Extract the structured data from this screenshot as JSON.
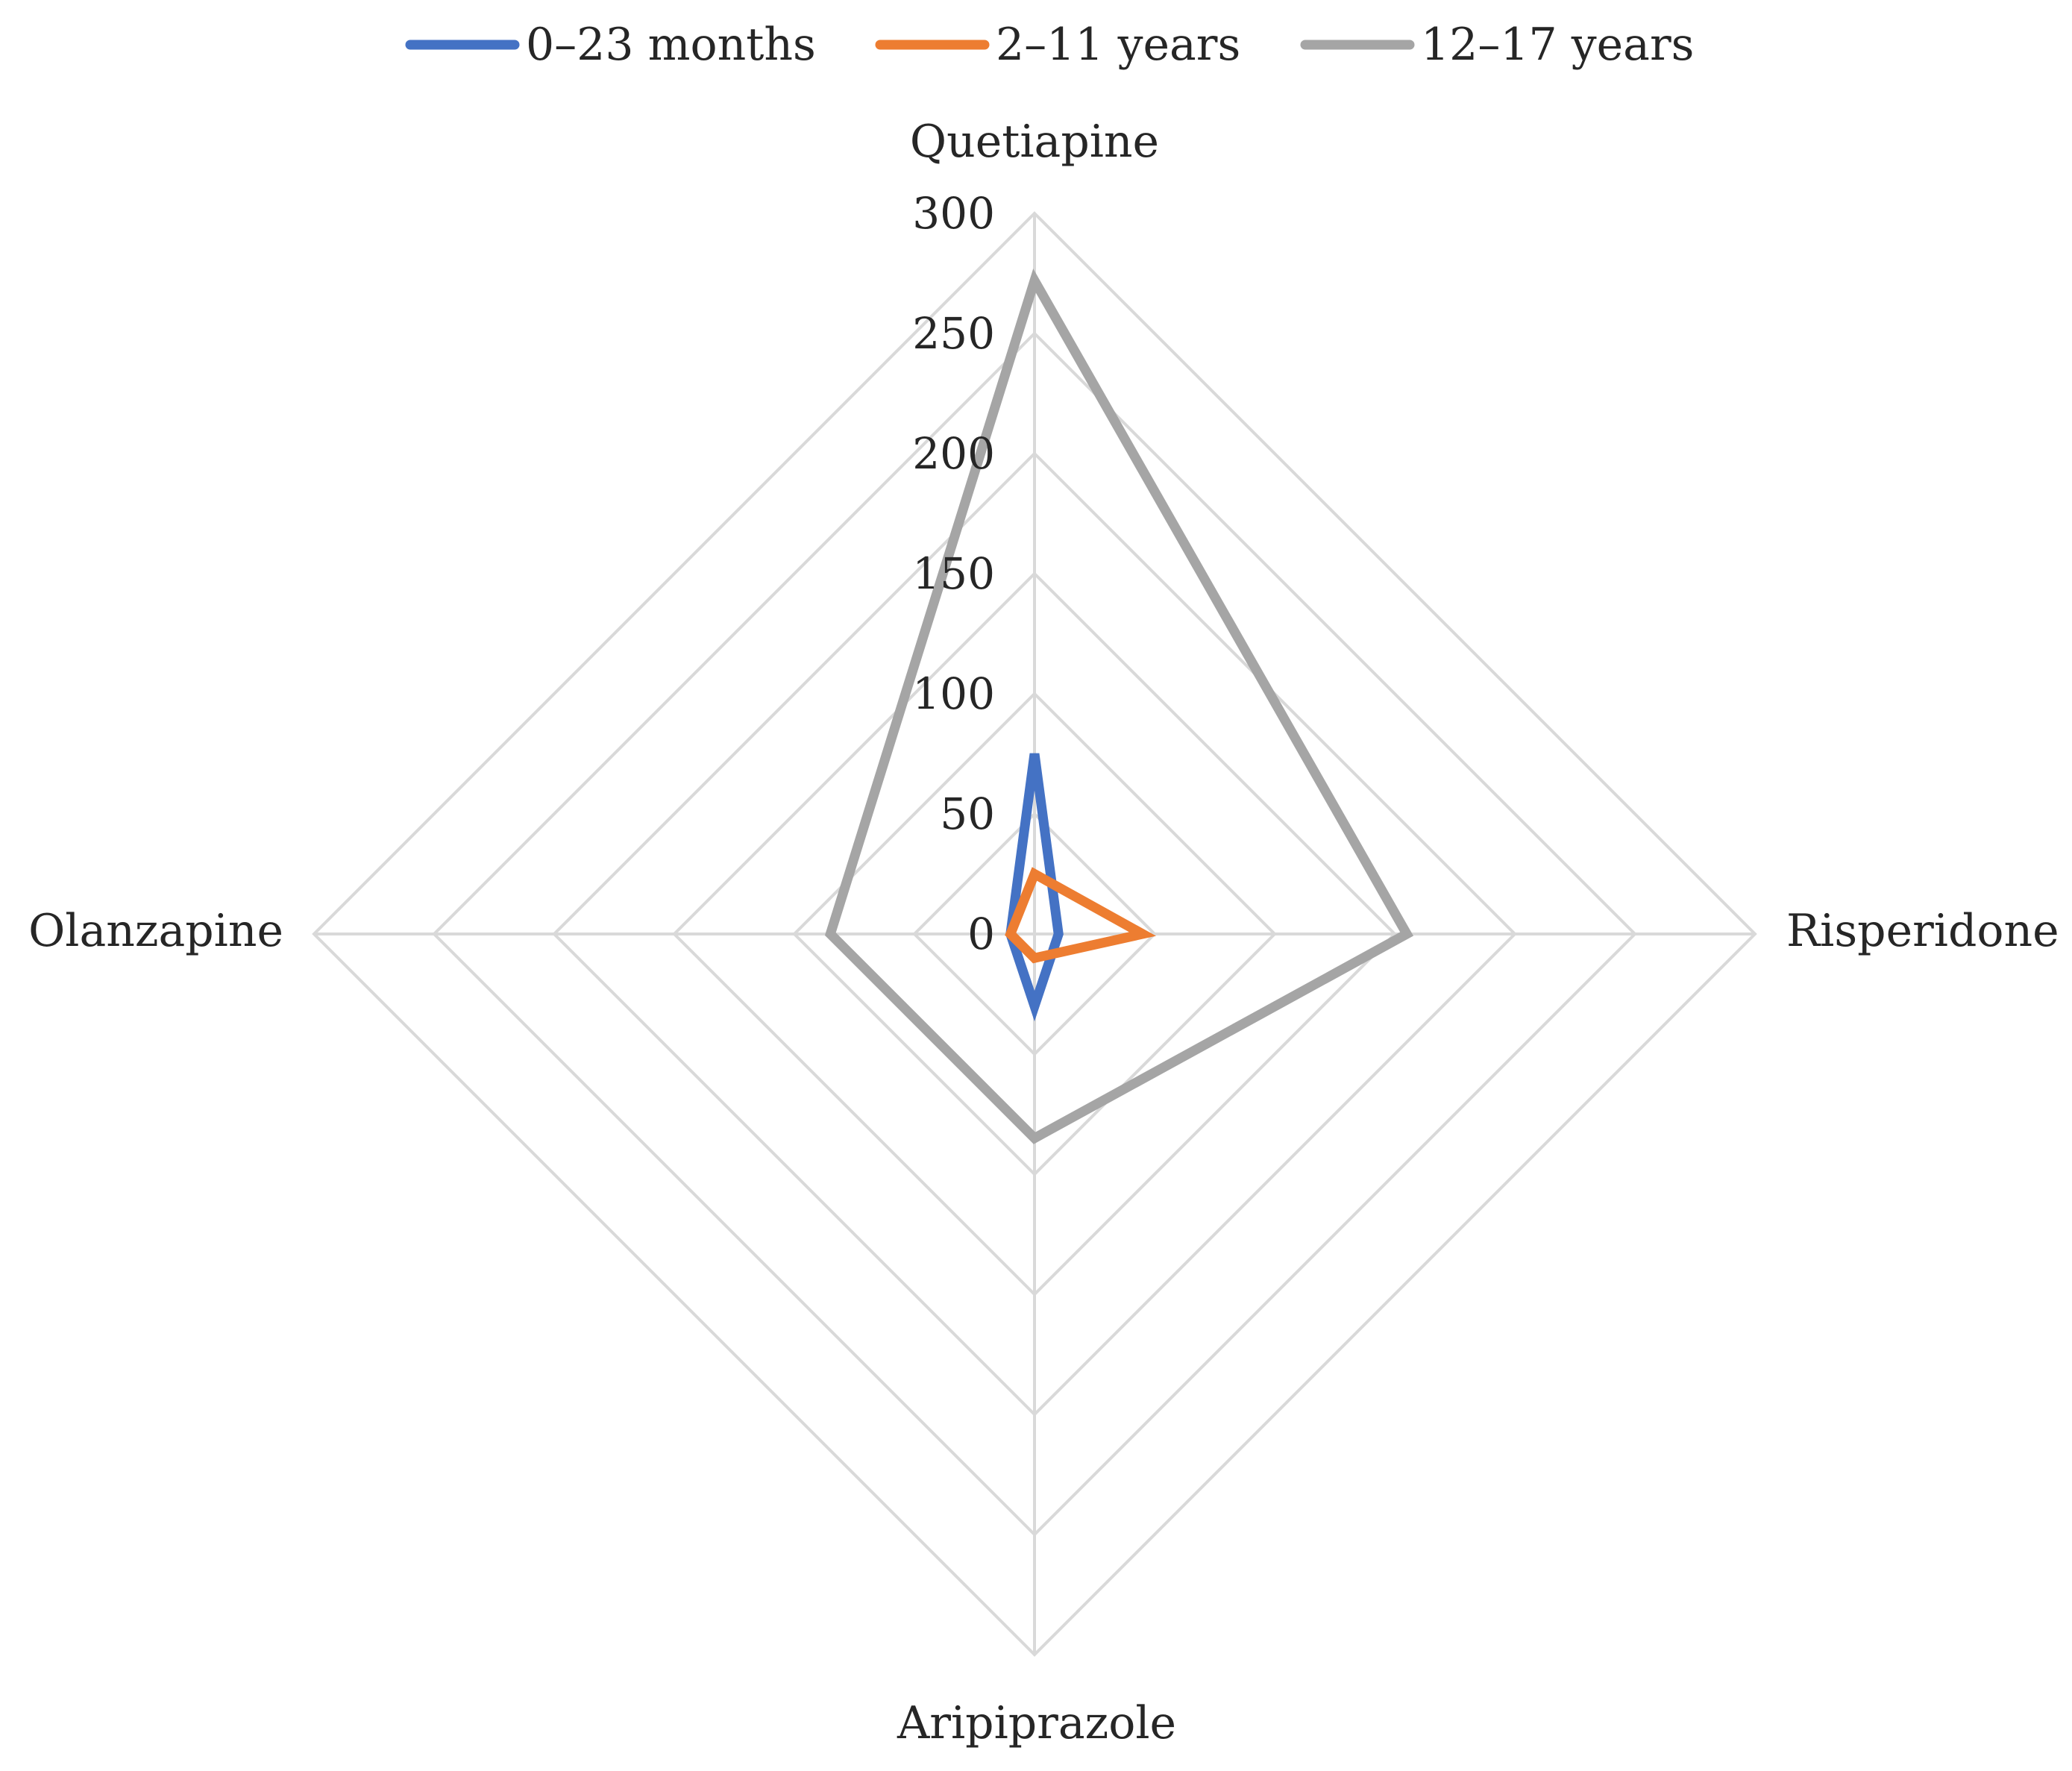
{
  "chart_data": {
    "type": "radar",
    "categories": [
      "Quetiapine",
      "Risperidone",
      "Aripiprazole",
      "Olanzapine"
    ],
    "series": [
      {
        "name": "0–23 months",
        "values": [
          75,
          10,
          30,
          10
        ],
        "color": "#4472C4"
      },
      {
        "name": "2–11 years",
        "values": [
          25,
          45,
          10,
          10
        ],
        "color": "#ED7D31"
      },
      {
        "name": "12–17 years",
        "values": [
          272,
          155,
          85,
          85
        ],
        "color": "#A5A5A5"
      }
    ],
    "r_ticks": [
      "0",
      "50",
      "100",
      "150",
      "200",
      "250",
      "300"
    ],
    "r_range": [
      0,
      300
    ],
    "grid": true,
    "grid_color": "#D9D9D9",
    "legend_position": "top"
  }
}
